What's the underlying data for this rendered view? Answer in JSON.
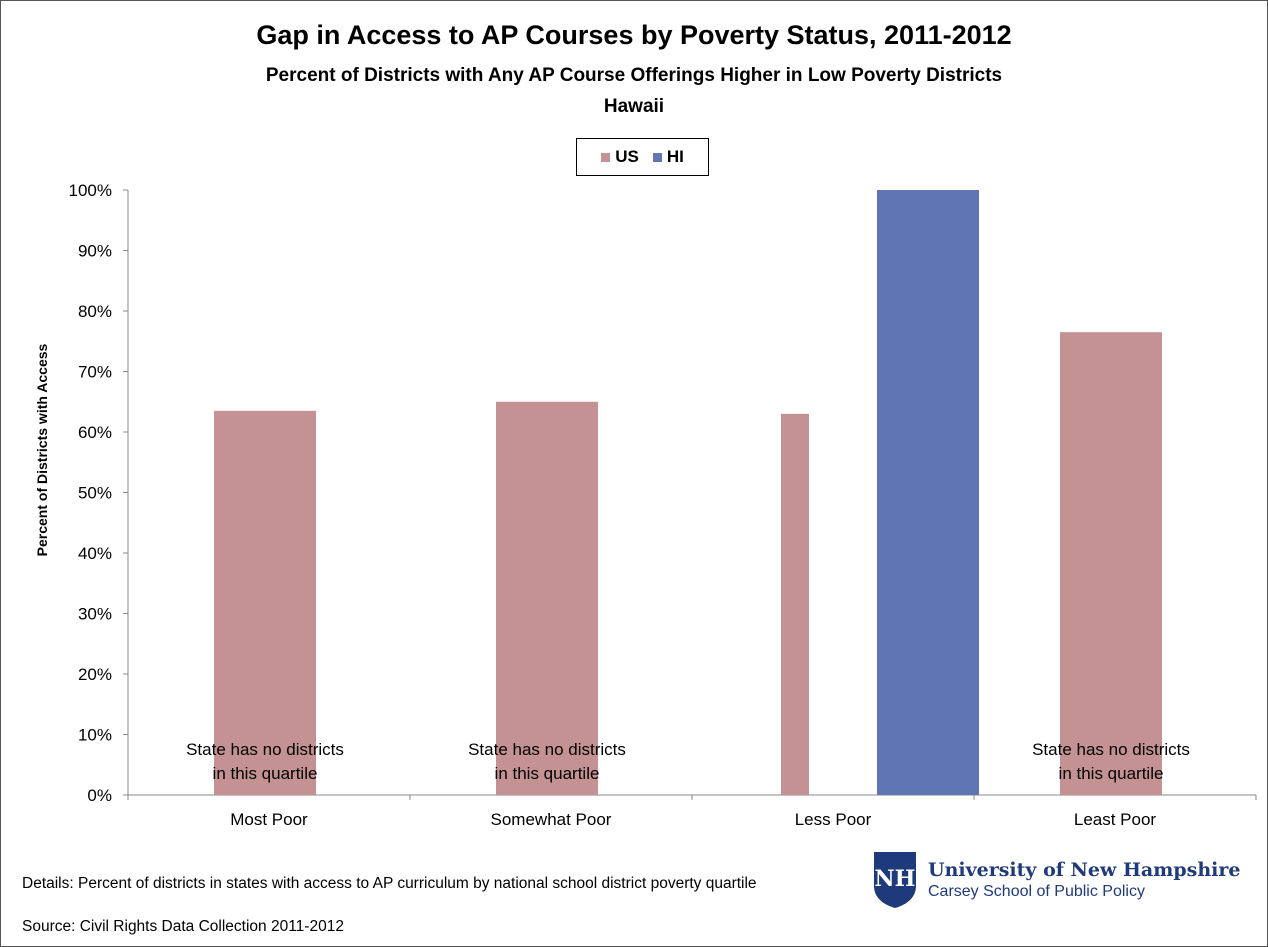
{
  "chart_data": {
    "type": "bar",
    "title": "Gap in Access to AP Courses by Poverty Status, 2011-2012",
    "subtitle": "Percent of Districts with Any AP Course Offerings Higher in Low Poverty Districts",
    "subtitle2": "Hawaii",
    "ylabel": "Percent of Districts  with Access",
    "xlabel": "",
    "ylim": [
      0,
      100
    ],
    "y_ticks": [
      "0%",
      "10%",
      "20%",
      "30%",
      "40%",
      "50%",
      "60%",
      "70%",
      "80%",
      "90%",
      "100%"
    ],
    "categories": [
      "Most Poor",
      "Somewhat Poor",
      "Less Poor",
      "Least Poor"
    ],
    "series": [
      {
        "name": "US",
        "color": "#c49292",
        "values": [
          63.5,
          65,
          63,
          76.5
        ]
      },
      {
        "name": "HI",
        "color": "#6075b3",
        "values": [
          null,
          null,
          100,
          null
        ]
      }
    ],
    "annotations": [
      {
        "category_index": 0,
        "line1": "State has no districts",
        "line2": "in this quartile"
      },
      {
        "category_index": 1,
        "line1": "State has no districts",
        "line2": "in this quartile"
      },
      {
        "category_index": 3,
        "line1": "State has no districts",
        "line2": "in this quartile"
      }
    ],
    "legend_position": "top-center",
    "grid": false
  },
  "footer": {
    "details": "Details: Percent of districts in states with access to AP curriculum by national school district poverty quartile",
    "source": "Source: Civil Rights Data Collection 2011-2012"
  },
  "logo": {
    "line1": "University of New Hampshire",
    "line2": "Carsey School of Public Policy",
    "mark": "NH",
    "color": "#1f3a7a"
  }
}
